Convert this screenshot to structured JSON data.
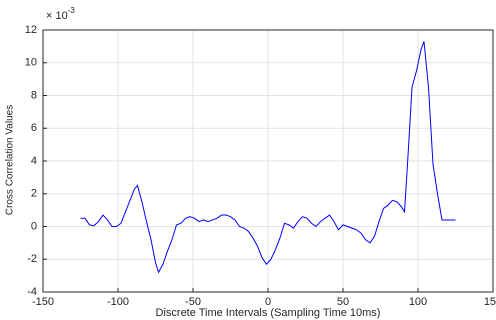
{
  "chart_data": {
    "type": "line",
    "x_label": "Discrete Time Intervals (Sampling Time 10ms)",
    "y_label": "Cross Correlation Values",
    "y_multiplier_base": "× 10",
    "y_multiplier_exponent": "-3",
    "xlim": [
      -150,
      150
    ],
    "xticks": [
      -150,
      -100,
      -50,
      0,
      50,
      100,
      150
    ],
    "ylim": [
      -4,
      12
    ],
    "yticks": [
      -4,
      -2,
      0,
      2,
      4,
      6,
      8,
      10,
      12
    ],
    "grid": true,
    "series": [
      {
        "color": "#0000ff",
        "x": [
          -125,
          -122,
          -119,
          -116,
          -113,
          -110,
          -107,
          -104,
          -101,
          -98,
          -95,
          -92,
          -89,
          -87,
          -84,
          -81,
          -78,
          -75,
          -73,
          -70,
          -67,
          -64,
          -61,
          -58,
          -55,
          -52,
          -49,
          -46,
          -43,
          -40,
          -37,
          -34,
          -31,
          -28,
          -25,
          -22,
          -19,
          -16,
          -13,
          -10,
          -7,
          -4,
          -1,
          2,
          5,
          8,
          11,
          14,
          17,
          20,
          23,
          26,
          29,
          32,
          35,
          38,
          41,
          44,
          47,
          50,
          53,
          56,
          59,
          62,
          65,
          68,
          71,
          74,
          77,
          80,
          83,
          86,
          89,
          91,
          93,
          96,
          99,
          102,
          104,
          107,
          110,
          113,
          116,
          119,
          122,
          125
        ],
        "values": [
          0.5,
          0.5,
          0.1,
          0.05,
          0.3,
          0.7,
          0.4,
          0.0,
          0.0,
          0.2,
          0.9,
          1.6,
          2.3,
          2.5,
          1.5,
          0.3,
          -0.8,
          -2.2,
          -2.8,
          -2.3,
          -1.5,
          -0.8,
          0.1,
          0.2,
          0.5,
          0.6,
          0.5,
          0.3,
          0.4,
          0.3,
          0.4,
          0.5,
          0.7,
          0.7,
          0.6,
          0.4,
          0.0,
          -0.1,
          -0.3,
          -0.7,
          -1.2,
          -1.9,
          -2.3,
          -2.0,
          -1.4,
          -0.7,
          0.2,
          0.1,
          -0.1,
          0.3,
          0.6,
          0.5,
          0.2,
          0.0,
          0.3,
          0.5,
          0.7,
          0.3,
          -0.2,
          0.1,
          0.0,
          -0.1,
          -0.2,
          -0.4,
          -0.8,
          -1.0,
          -0.6,
          0.3,
          1.1,
          1.3,
          1.6,
          1.5,
          1.2,
          0.9,
          3.8,
          8.5,
          9.5,
          10.8,
          11.3,
          8.5,
          3.8,
          2.0,
          0.4,
          0.4,
          0.4,
          0.4
        ]
      }
    ]
  }
}
